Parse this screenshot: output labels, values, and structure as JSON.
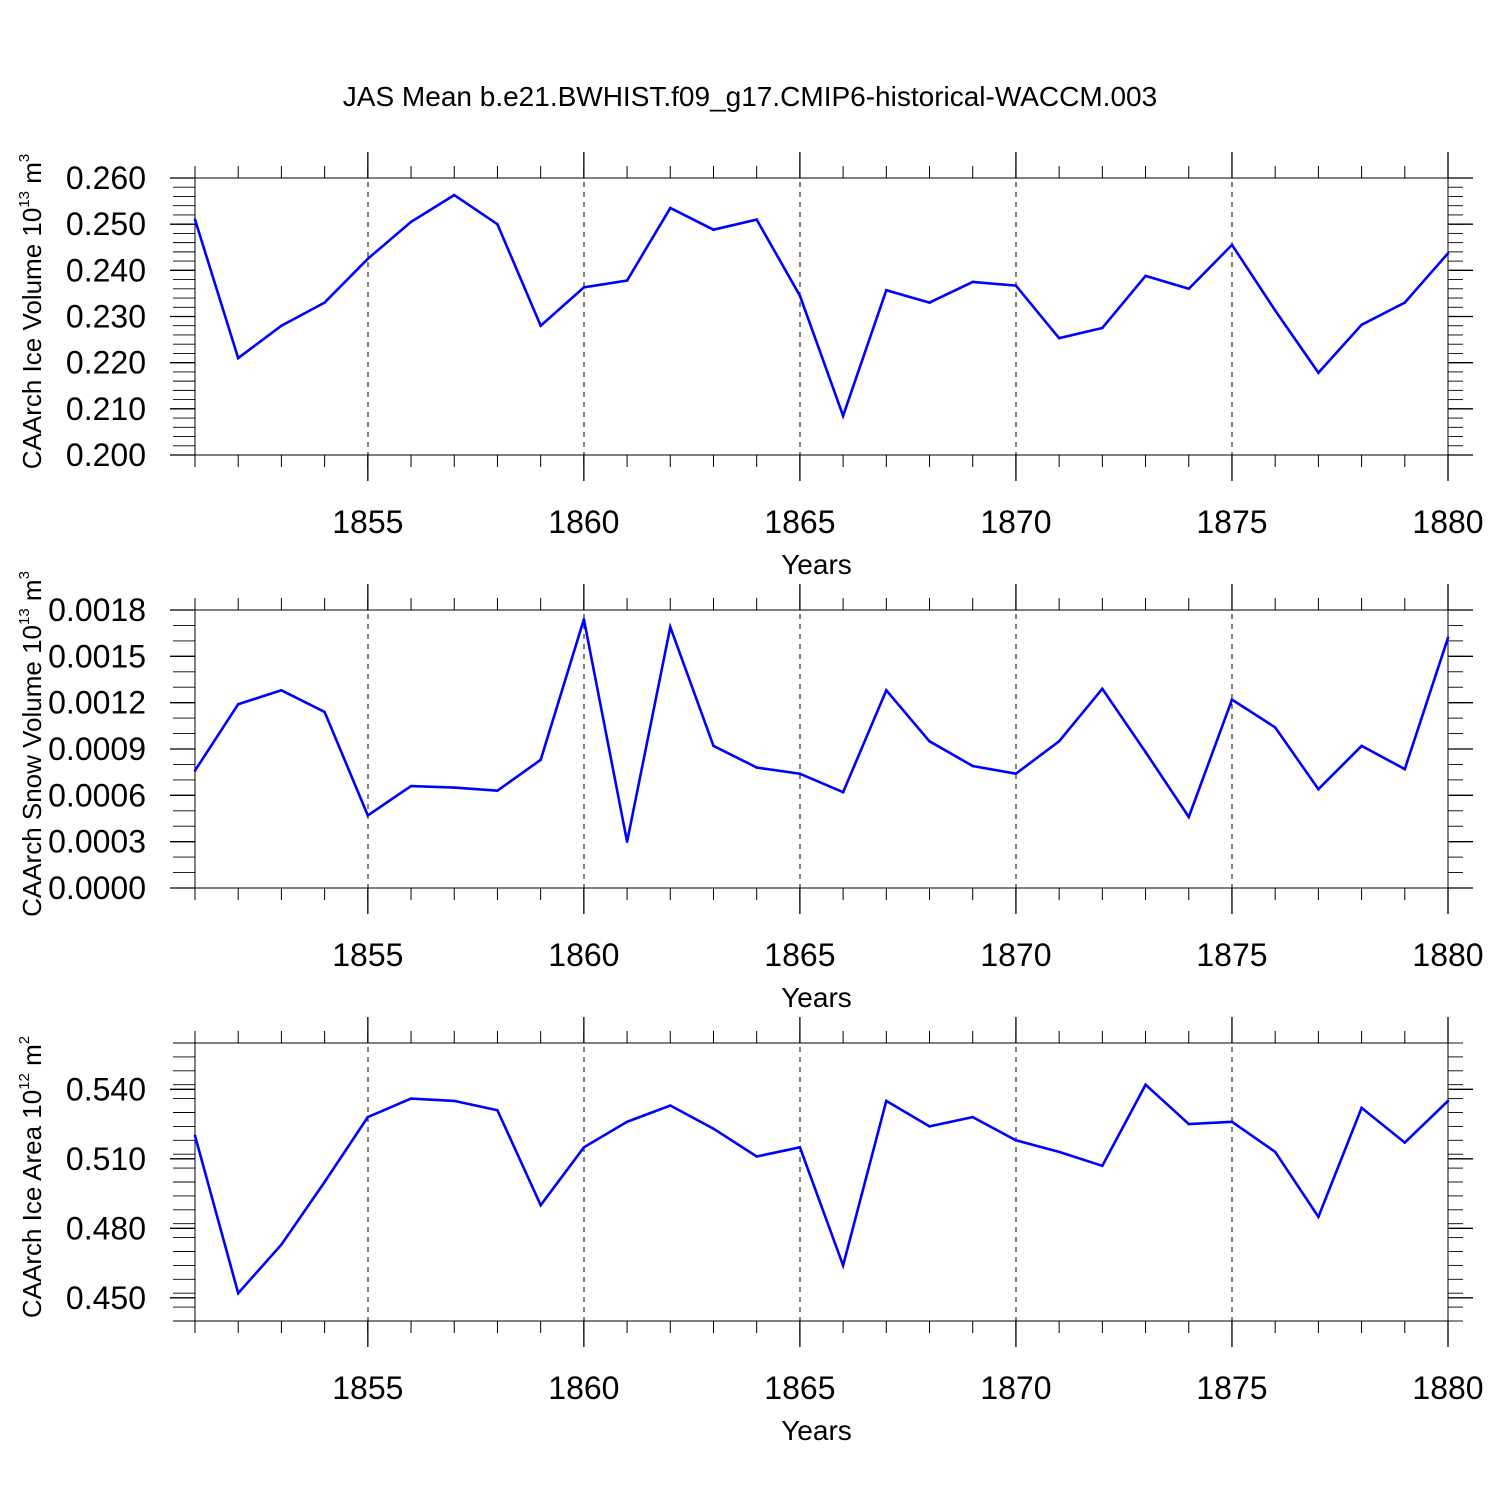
{
  "title": "JAS Mean b.e21.BWHIST.f09_g17.CMIP6-historical-WACCM.003",
  "chart_data": [
    {
      "type": "line",
      "title": "JAS Mean b.e21.BWHIST.f09_g17.CMIP6-historical-WACCM.003",
      "ylabel": {
        "main": "CAArch Ice Volume 10",
        "exp": "13",
        "unit": " m",
        "unit_exp": "3"
      },
      "xlabel": "Years",
      "xlim": [
        1851,
        1880
      ],
      "ylim": [
        0.2,
        0.26
      ],
      "yticks": [
        0.2,
        0.21,
        0.22,
        0.23,
        0.24,
        0.25,
        0.26
      ],
      "ytick_labels": [
        "0.200",
        "0.210",
        "0.220",
        "0.230",
        "0.240",
        "0.250",
        "0.260"
      ],
      "yminor": 0.002,
      "xticks": [
        1855,
        1860,
        1865,
        1870,
        1875,
        1880
      ],
      "xtick_labels": [
        "1855",
        "1860",
        "1865",
        "1870",
        "1875",
        "1880"
      ],
      "series": [
        {
          "name": "ice_volume",
          "color": "#0000ff",
          "x": [
            1851,
            1852,
            1853,
            1854,
            1855,
            1856,
            1857,
            1858,
            1859,
            1860,
            1861,
            1862,
            1863,
            1864,
            1865,
            1866,
            1867,
            1868,
            1869,
            1870,
            1871,
            1872,
            1873,
            1874,
            1875,
            1876,
            1877,
            1878,
            1879,
            1880
          ],
          "values": [
            0.251,
            0.221,
            0.228,
            0.233,
            0.2425,
            0.2505,
            0.2563,
            0.25,
            0.228,
            0.2363,
            0.2378,
            0.2535,
            0.2488,
            0.251,
            0.2345,
            0.2085,
            0.2357,
            0.233,
            0.2375,
            0.2367,
            0.2253,
            0.2275,
            0.2388,
            0.236,
            0.2455,
            0.2313,
            0.2178,
            0.2282,
            0.233,
            0.2437
          ]
        }
      ]
    },
    {
      "type": "line",
      "ylabel": {
        "main": "CAArch Snow Volume 10",
        "exp": "13",
        "unit": " m",
        "unit_exp": "3"
      },
      "xlabel": "Years",
      "xlim": [
        1851,
        1880
      ],
      "ylim": [
        0.0,
        0.0018
      ],
      "yticks": [
        0.0,
        0.0003,
        0.0006,
        0.0009,
        0.0012,
        0.0015,
        0.0018
      ],
      "ytick_labels": [
        "0.0000",
        "0.0003",
        "0.0006",
        "0.0009",
        "0.0012",
        "0.0015",
        "0.0018"
      ],
      "yminor": 0.0001,
      "xticks": [
        1855,
        1860,
        1865,
        1870,
        1875,
        1880
      ],
      "xtick_labels": [
        "1855",
        "1860",
        "1865",
        "1870",
        "1875",
        "1880"
      ],
      "series": [
        {
          "name": "snow_volume",
          "color": "#0000ff",
          "x": [
            1851,
            1852,
            1853,
            1854,
            1855,
            1856,
            1857,
            1858,
            1859,
            1860,
            1861,
            1862,
            1863,
            1864,
            1865,
            1866,
            1867,
            1868,
            1869,
            1870,
            1871,
            1872,
            1873,
            1874,
            1875,
            1876,
            1877,
            1878,
            1879,
            1880
          ],
          "values": [
            0.00076,
            0.00119,
            0.00128,
            0.00114,
            0.00047,
            0.00066,
            0.00065,
            0.00063,
            0.00083,
            0.00174,
            0.0003,
            0.00169,
            0.00092,
            0.00078,
            0.00074,
            0.00062,
            0.00128,
            0.00095,
            0.00079,
            0.00074,
            0.00095,
            0.00129,
            0.00088,
            0.00046,
            0.00122,
            0.00104,
            0.00064,
            0.00092,
            0.00077,
            0.00162
          ]
        }
      ]
    },
    {
      "type": "line",
      "ylabel": {
        "main": "CAArch Ice Area 10",
        "exp": "12",
        "unit": " m",
        "unit_exp": "2"
      },
      "xlabel": "Years",
      "xlim": [
        1851,
        1880
      ],
      "ylim": [
        0.44,
        0.56
      ],
      "yticks": [
        0.45,
        0.48,
        0.51,
        0.54
      ],
      "ytick_labels": [
        "0.450",
        "0.480",
        "0.510",
        "0.540"
      ],
      "yminor": 0.006,
      "xticks": [
        1855,
        1860,
        1865,
        1870,
        1875,
        1880
      ],
      "xtick_labels": [
        "1855",
        "1860",
        "1865",
        "1870",
        "1875",
        "1880"
      ],
      "series": [
        {
          "name": "ice_area",
          "color": "#0000ff",
          "x": [
            1851,
            1852,
            1853,
            1854,
            1855,
            1856,
            1857,
            1858,
            1859,
            1860,
            1861,
            1862,
            1863,
            1864,
            1865,
            1866,
            1867,
            1868,
            1869,
            1870,
            1871,
            1872,
            1873,
            1874,
            1875,
            1876,
            1877,
            1878,
            1879,
            1880
          ],
          "values": [
            0.52,
            0.452,
            0.473,
            0.5,
            0.528,
            0.536,
            0.535,
            0.531,
            0.49,
            0.515,
            0.526,
            0.533,
            0.523,
            0.511,
            0.515,
            0.464,
            0.535,
            0.524,
            0.528,
            0.518,
            0.513,
            0.507,
            0.542,
            0.525,
            0.526,
            0.513,
            0.485,
            0.532,
            0.517,
            0.535
          ]
        }
      ]
    }
  ]
}
